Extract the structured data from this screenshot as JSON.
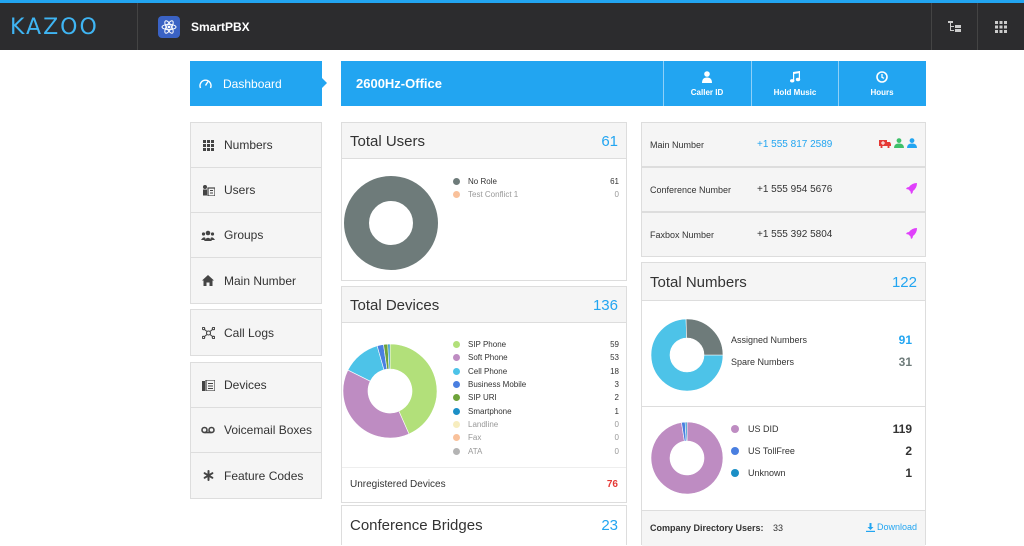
{
  "topbar": {
    "logo": "KAZOO",
    "app_name": "SmartPBX",
    "icons": [
      "atom-icon",
      "tree-icon",
      "grid-icon"
    ]
  },
  "nav": {
    "dashboard": "Dashboard",
    "group1": [
      "Numbers",
      "Users",
      "Groups",
      "Main Number"
    ],
    "group2": [
      "Call Logs"
    ],
    "group3": [
      "Devices",
      "Voicemail Boxes",
      "Feature Codes"
    ]
  },
  "header": {
    "title": "2600Hz-Office",
    "buttons": [
      "Caller ID",
      "Hold Music",
      "Hours"
    ]
  },
  "total_users": {
    "title": "Total Users",
    "count": "61",
    "legend": [
      {
        "label": "No Role",
        "value": "61",
        "color": "#6e7b7a"
      },
      {
        "label": "Test Conflict 1",
        "value": "0",
        "color": "#f9c19b"
      }
    ]
  },
  "total_devices": {
    "title": "Total Devices",
    "count": "136",
    "legend": [
      {
        "label": "SIP Phone",
        "value": "59",
        "color": "#b2e07a"
      },
      {
        "label": "Soft Phone",
        "value": "53",
        "color": "#be8cc2"
      },
      {
        "label": "Cell Phone",
        "value": "18",
        "color": "#4dc3e8"
      },
      {
        "label": "Business Mobile",
        "value": "3",
        "color": "#4a7fe0"
      },
      {
        "label": "SIP URI",
        "value": "2",
        "color": "#6ea33a"
      },
      {
        "label": "Smartphone",
        "value": "1",
        "color": "#1b8fc6"
      },
      {
        "label": "Landline",
        "value": "0",
        "color": "#f7edbf"
      },
      {
        "label": "Fax",
        "value": "0",
        "color": "#f9c19b"
      },
      {
        "label": "ATA",
        "value": "0",
        "color": "#b4b4b4"
      }
    ],
    "unregistered_label": "Unregistered Devices",
    "unregistered_count": "76",
    "unregistered_color": "#e53935"
  },
  "conference": {
    "title": "Conference Bridges",
    "count": "23"
  },
  "numbers": [
    {
      "label": "Main Number",
      "value": "+1 555 817 2589",
      "accent": true
    },
    {
      "label": "Conference Number",
      "value": "+1 555 954 5676",
      "accent": false
    },
    {
      "label": "Faxbox Number",
      "value": "+1 555 392 5804",
      "accent": false
    }
  ],
  "total_numbers": {
    "title": "Total Numbers",
    "count": "122",
    "assigned_label": "Assigned Numbers",
    "assigned_value": "91",
    "spare_label": "Spare Numbers",
    "spare_value": "31",
    "types": [
      {
        "label": "US DID",
        "value": "119",
        "color": "#be8cc2"
      },
      {
        "label": "US TollFree",
        "value": "2",
        "color": "#4a7fe0"
      },
      {
        "label": "Unknown",
        "value": "1",
        "color": "#1b8fc6"
      }
    ]
  },
  "directory": {
    "label": "Company Directory Users:",
    "count": "33",
    "download": "Download"
  },
  "chart_data": [
    {
      "type": "pie",
      "categories": [
        "No Role",
        "Test Conflict 1"
      ],
      "values": [
        61,
        0
      ]
    },
    {
      "type": "pie",
      "categories": [
        "SIP Phone",
        "Soft Phone",
        "Cell Phone",
        "Business Mobile",
        "SIP URI",
        "Smartphone",
        "Landline",
        "Fax",
        "ATA"
      ],
      "values": [
        59,
        53,
        18,
        3,
        2,
        1,
        0,
        0,
        0
      ]
    },
    {
      "type": "pie",
      "categories": [
        "Assigned Numbers",
        "Spare Numbers"
      ],
      "values": [
        91,
        31
      ]
    },
    {
      "type": "pie",
      "categories": [
        "US DID",
        "US TollFree",
        "Unknown"
      ],
      "values": [
        119,
        2,
        1
      ]
    }
  ]
}
